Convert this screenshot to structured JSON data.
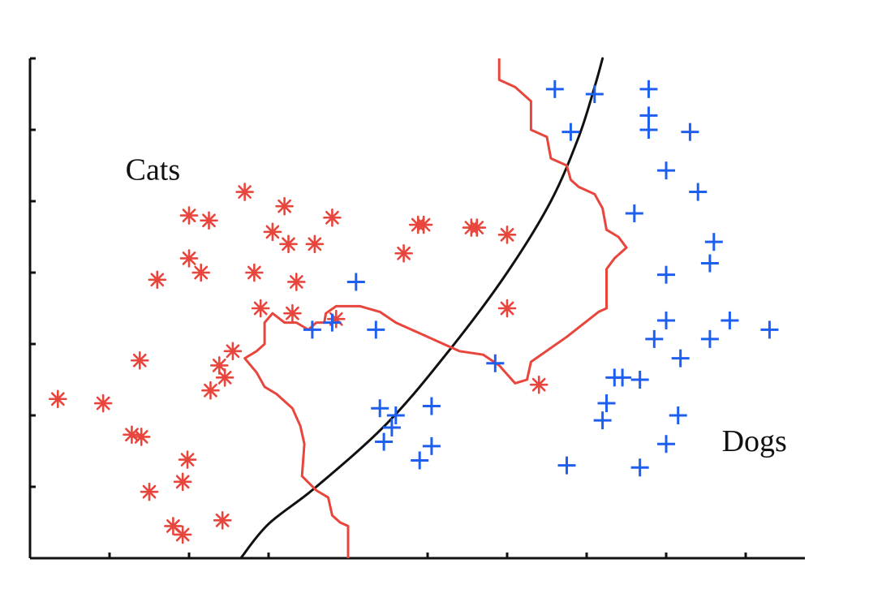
{
  "chart_data": {
    "type": "scatter",
    "title": "",
    "xlabel": "",
    "ylabel": "",
    "xlim": [
      0,
      10
    ],
    "ylim": [
      0,
      7
    ],
    "grid": false,
    "x_ticks": [
      0,
      1,
      2,
      3,
      4,
      5,
      6,
      7,
      8,
      9
    ],
    "y_ticks": [
      1,
      2,
      3,
      4,
      5,
      6,
      7
    ],
    "annotations": [
      {
        "text": "Cats",
        "x": 1.2,
        "y": 5.3
      },
      {
        "text": "Dogs",
        "x": 8.7,
        "y": 1.5
      }
    ],
    "colors": {
      "cats": "#e8453c",
      "dogs": "#1f5ff0",
      "smooth_boundary": "#111111",
      "jagged_boundary": "#e8453c"
    },
    "series": [
      {
        "marker": "asterisk",
        "points": [
          [
            0.35,
            2.23
          ],
          [
            0.92,
            2.17
          ],
          [
            1.28,
            1.73
          ],
          [
            1.4,
            1.7
          ],
          [
            1.38,
            2.77
          ],
          [
            1.5,
            0.93
          ],
          [
            1.6,
            3.9
          ],
          [
            1.8,
            0.45
          ],
          [
            1.92,
            1.07
          ],
          [
            1.92,
            0.33
          ],
          [
            1.98,
            1.38
          ],
          [
            2.0,
            4.8
          ],
          [
            2.0,
            4.2
          ],
          [
            2.15,
            4.0
          ],
          [
            2.25,
            4.73
          ],
          [
            2.27,
            2.35
          ],
          [
            2.38,
            2.7
          ],
          [
            2.45,
            2.53
          ],
          [
            2.55,
            2.9
          ],
          [
            2.42,
            0.53
          ],
          [
            2.7,
            5.13
          ],
          [
            2.82,
            4.0
          ],
          [
            2.9,
            3.5
          ],
          [
            3.05,
            4.57
          ],
          [
            3.2,
            4.93
          ],
          [
            3.25,
            4.4
          ],
          [
            3.3,
            3.43
          ],
          [
            3.35,
            3.87
          ],
          [
            3.58,
            4.4
          ],
          [
            3.8,
            4.77
          ],
          [
            3.85,
            3.35
          ],
          [
            4.7,
            4.27
          ],
          [
            4.88,
            4.67
          ],
          [
            4.95,
            4.67
          ],
          [
            5.55,
            4.63
          ],
          [
            5.62,
            4.63
          ],
          [
            6.0,
            4.53
          ],
          [
            6.0,
            3.5
          ],
          [
            6.4,
            2.43
          ]
        ]
      },
      {
        "marker": "plus",
        "points": [
          [
            6.6,
            6.57
          ],
          [
            6.8,
            5.97
          ],
          [
            7.1,
            6.5
          ],
          [
            7.78,
            6.57
          ],
          [
            7.78,
            6.2
          ],
          [
            7.78,
            6.0
          ],
          [
            8.3,
            5.97
          ],
          [
            8.0,
            5.43
          ],
          [
            8.4,
            5.13
          ],
          [
            7.6,
            4.83
          ],
          [
            8.6,
            4.43
          ],
          [
            8.55,
            4.13
          ],
          [
            8.0,
            3.97
          ],
          [
            8.0,
            3.33
          ],
          [
            8.8,
            3.33
          ],
          [
            8.55,
            3.07
          ],
          [
            9.3,
            3.2
          ],
          [
            7.85,
            3.07
          ],
          [
            8.18,
            2.8
          ],
          [
            7.35,
            2.53
          ],
          [
            7.45,
            2.53
          ],
          [
            7.67,
            2.5
          ],
          [
            7.25,
            2.17
          ],
          [
            7.2,
            1.93
          ],
          [
            8.15,
            2.0
          ],
          [
            8.0,
            1.6
          ],
          [
            6.75,
            1.3
          ],
          [
            7.67,
            1.27
          ],
          [
            4.1,
            3.87
          ],
          [
            3.55,
            3.2
          ],
          [
            3.8,
            3.3
          ],
          [
            4.35,
            3.2
          ],
          [
            5.85,
            2.73
          ],
          [
            4.4,
            2.1
          ],
          [
            4.6,
            2.0
          ],
          [
            4.55,
            1.83
          ],
          [
            4.45,
            1.63
          ],
          [
            5.05,
            2.13
          ],
          [
            5.05,
            1.57
          ],
          [
            4.9,
            1.37
          ]
        ]
      }
    ],
    "boundaries": [
      {
        "style": "smooth",
        "points": [
          [
            2.65,
            0.0
          ],
          [
            3.0,
            0.48
          ],
          [
            3.6,
            1.0
          ],
          [
            4.5,
            1.9
          ],
          [
            5.3,
            2.95
          ],
          [
            6.0,
            4.0
          ],
          [
            6.55,
            5.0
          ],
          [
            6.9,
            5.9
          ],
          [
            7.1,
            6.6
          ],
          [
            7.2,
            7.0
          ]
        ]
      },
      {
        "style": "jagged",
        "points": [
          [
            5.9,
            7.0
          ],
          [
            5.9,
            6.7
          ],
          [
            6.1,
            6.6
          ],
          [
            6.3,
            6.4
          ],
          [
            6.3,
            6.0
          ],
          [
            6.5,
            5.9
          ],
          [
            6.55,
            5.6
          ],
          [
            6.75,
            5.5
          ],
          [
            6.8,
            5.3
          ],
          [
            6.9,
            5.2
          ],
          [
            7.1,
            5.1
          ],
          [
            7.2,
            4.9
          ],
          [
            7.25,
            4.6
          ],
          [
            7.4,
            4.5
          ],
          [
            7.5,
            4.35
          ],
          [
            7.35,
            4.2
          ],
          [
            7.25,
            4.05
          ],
          [
            7.25,
            3.5
          ],
          [
            7.15,
            3.45
          ],
          [
            6.75,
            3.1
          ],
          [
            6.3,
            2.75
          ],
          [
            6.25,
            2.5
          ],
          [
            6.1,
            2.45
          ],
          [
            5.9,
            2.7
          ],
          [
            5.7,
            2.85
          ],
          [
            5.4,
            2.9
          ],
          [
            5.2,
            3.0
          ],
          [
            4.9,
            3.15
          ],
          [
            4.6,
            3.3
          ],
          [
            4.4,
            3.45
          ],
          [
            4.15,
            3.53
          ],
          [
            3.85,
            3.53
          ],
          [
            3.72,
            3.43
          ],
          [
            3.7,
            3.3
          ],
          [
            3.6,
            3.3
          ],
          [
            3.5,
            3.2
          ],
          [
            3.35,
            3.3
          ],
          [
            3.2,
            3.3
          ],
          [
            3.05,
            3.43
          ],
          [
            2.95,
            3.3
          ],
          [
            2.95,
            3.0
          ],
          [
            2.85,
            2.9
          ],
          [
            2.7,
            2.8
          ],
          [
            2.85,
            2.6
          ],
          [
            2.95,
            2.4
          ],
          [
            3.1,
            2.3
          ],
          [
            3.3,
            2.1
          ],
          [
            3.4,
            1.85
          ],
          [
            3.45,
            1.6
          ],
          [
            3.42,
            1.15
          ],
          [
            3.6,
            0.95
          ],
          [
            3.75,
            0.85
          ],
          [
            3.8,
            0.6
          ],
          [
            3.9,
            0.5
          ],
          [
            4.0,
            0.45
          ],
          [
            4.0,
            0.0
          ]
        ]
      }
    ]
  }
}
